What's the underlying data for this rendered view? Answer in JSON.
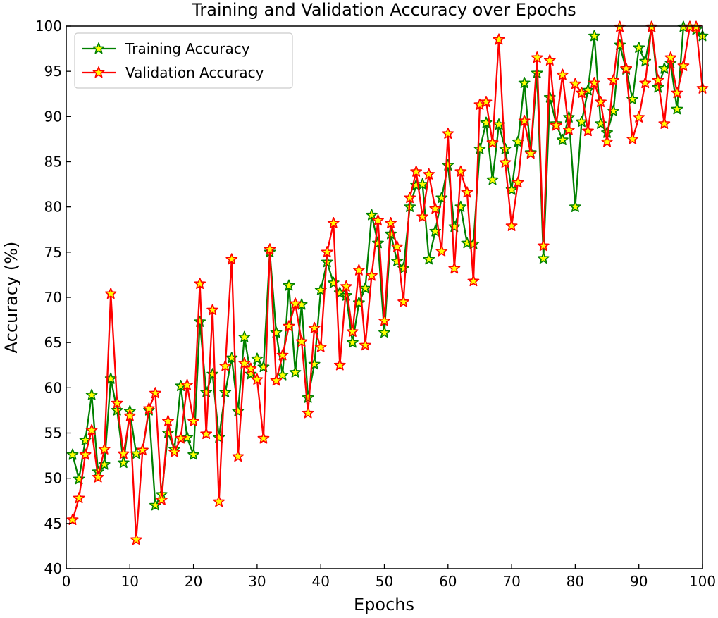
{
  "chart_data": {
    "type": "line",
    "title": "Training and Validation Accuracy over Epochs",
    "xlabel": "Epochs",
    "ylabel": "Accuracy (%)",
    "xlim": [
      0,
      100
    ],
    "ylim": [
      40,
      100
    ],
    "xticks": [
      "0",
      "10",
      "20",
      "30",
      "40",
      "50",
      "60",
      "70",
      "80",
      "90",
      "100"
    ],
    "yticks": [
      "40",
      "45",
      "50",
      "55",
      "60",
      "65",
      "70",
      "75",
      "80",
      "85",
      "90",
      "95",
      "100"
    ],
    "grid": false,
    "legend_position": "top-left",
    "marker": "star",
    "marker_fill": "#ffff00",
    "x": [
      1,
      2,
      3,
      4,
      5,
      6,
      7,
      8,
      9,
      10,
      11,
      12,
      13,
      14,
      15,
      16,
      17,
      18,
      19,
      20,
      21,
      22,
      23,
      24,
      25,
      26,
      27,
      28,
      29,
      30,
      31,
      32,
      33,
      34,
      35,
      36,
      37,
      38,
      39,
      40,
      41,
      42,
      43,
      44,
      45,
      46,
      47,
      48,
      49,
      50,
      51,
      52,
      53,
      54,
      55,
      56,
      57,
      58,
      59,
      60,
      61,
      62,
      63,
      64,
      65,
      66,
      67,
      68,
      69,
      70,
      71,
      72,
      73,
      74,
      75,
      76,
      77,
      78,
      79,
      80,
      81,
      82,
      83,
      84,
      85,
      86,
      87,
      88,
      89,
      90,
      91,
      92,
      93,
      94,
      95,
      96,
      97,
      98,
      99,
      100
    ],
    "series": [
      {
        "name": "Training Accuracy",
        "color": "#008000",
        "values": [
          52.6,
          49.9,
          54.2,
          59.2,
          50.7,
          51.5,
          61.0,
          57.5,
          51.7,
          57.4,
          52.7,
          53.1,
          57.5,
          47.0,
          48.2,
          55.0,
          53.2,
          60.2,
          54.5,
          52.6,
          67.3,
          59.5,
          61.5,
          54.5,
          59.5,
          63.3,
          57.4,
          65.6,
          61.5,
          63.2,
          62.3,
          75.0,
          66.1,
          61.4,
          71.3,
          61.7,
          69.2,
          58.9,
          62.6,
          70.8,
          73.9,
          71.6,
          70.5,
          70.2,
          65.0,
          69.4,
          71.0,
          79.1,
          76.0,
          66.1,
          77.0,
          74.0,
          73.2,
          80.0,
          82.4,
          82.5,
          74.2,
          77.3,
          81.0,
          84.6,
          77.8,
          80.0,
          76.0,
          75.9,
          86.4,
          89.3,
          83.0,
          89.1,
          86.4,
          81.9,
          87.2,
          93.7,
          86.0,
          94.8,
          74.3,
          92.1,
          89.2,
          87.4,
          89.9,
          80.0,
          89.4,
          92.9,
          98.9,
          89.2,
          88.2,
          90.6,
          97.9,
          95.2,
          91.9,
          97.6,
          96.1,
          99.9,
          93.2,
          95.3,
          95.9,
          90.8,
          99.9,
          99.9,
          99.6,
          98.9
        ]
      },
      {
        "name": "Validation Accuracy",
        "color": "#ff0000",
        "values": [
          45.4,
          47.8,
          52.6,
          55.3,
          50.1,
          53.2,
          70.4,
          58.3,
          52.7,
          56.9,
          43.2,
          53.1,
          57.7,
          59.4,
          47.6,
          56.3,
          52.9,
          54.4,
          60.3,
          56.3,
          71.5,
          54.9,
          68.6,
          47.4,
          62.4,
          74.2,
          52.4,
          62.7,
          62.1,
          60.9,
          54.4,
          75.3,
          60.8,
          63.6,
          66.8,
          69.3,
          65.1,
          57.2,
          66.6,
          64.5,
          75.0,
          78.2,
          62.5,
          71.2,
          66.2,
          73.0,
          64.7,
          72.4,
          78.5,
          67.4,
          78.2,
          75.6,
          69.5,
          81.0,
          83.9,
          78.9,
          83.6,
          79.8,
          75.1,
          88.1,
          73.2,
          83.9,
          81.6,
          71.8,
          91.3,
          91.6,
          87.1,
          98.5,
          84.9,
          77.9,
          82.7,
          89.5,
          85.9,
          96.5,
          75.7,
          96.2,
          89.0,
          94.6,
          88.5,
          93.6,
          92.6,
          88.4,
          93.7,
          91.6,
          87.2,
          94.0,
          99.9,
          95.3,
          87.5,
          89.9,
          93.7,
          99.9,
          94.0,
          89.2,
          96.5,
          92.6,
          95.6,
          99.9,
          99.9,
          93.1
        ]
      }
    ]
  }
}
